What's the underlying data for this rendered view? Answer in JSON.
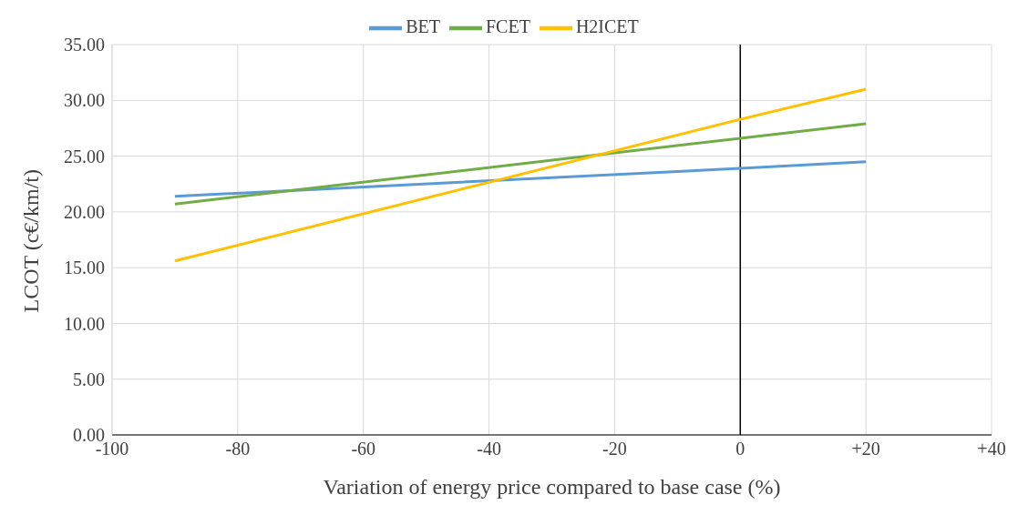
{
  "chart_data": {
    "type": "line",
    "xlabel": "Variation of energy price compared to base case (%)",
    "ylabel": "LCOT (c€/km/t)",
    "x": [
      -90,
      0,
      20
    ],
    "series": [
      {
        "name": "BET",
        "color": "#5b9bd5",
        "values": [
          21.4,
          23.9,
          24.5
        ]
      },
      {
        "name": "FCET",
        "color": "#70ad47",
        "values": [
          20.7,
          26.6,
          27.9
        ]
      },
      {
        "name": "H2ICET",
        "color": "#ffc000",
        "values": [
          15.6,
          28.3,
          31.0
        ]
      }
    ],
    "xlim": [
      -100,
      40
    ],
    "xticks": [
      -100,
      -80,
      -60,
      -40,
      -20,
      0,
      {
        "value": 20,
        "label": "+20"
      },
      {
        "value": 40,
        "label": "+40"
      }
    ],
    "ylim": [
      0,
      35
    ],
    "yticks": [
      {
        "value": 0,
        "label": "0.00"
      },
      {
        "value": 5,
        "label": "5.00"
      },
      {
        "value": 10,
        "label": "10.00"
      },
      {
        "value": 15,
        "label": "15.00"
      },
      {
        "value": 20,
        "label": "20.00"
      },
      {
        "value": 25,
        "label": "25.00"
      },
      {
        "value": 30,
        "label": "30.00"
      },
      {
        "value": 35,
        "label": "35.00"
      }
    ],
    "ref_lines": [
      {
        "axis": "x",
        "value": 0,
        "color": "#000000"
      }
    ],
    "grid": true,
    "legend": "top",
    "marker": "none",
    "line_style": "solid"
  }
}
